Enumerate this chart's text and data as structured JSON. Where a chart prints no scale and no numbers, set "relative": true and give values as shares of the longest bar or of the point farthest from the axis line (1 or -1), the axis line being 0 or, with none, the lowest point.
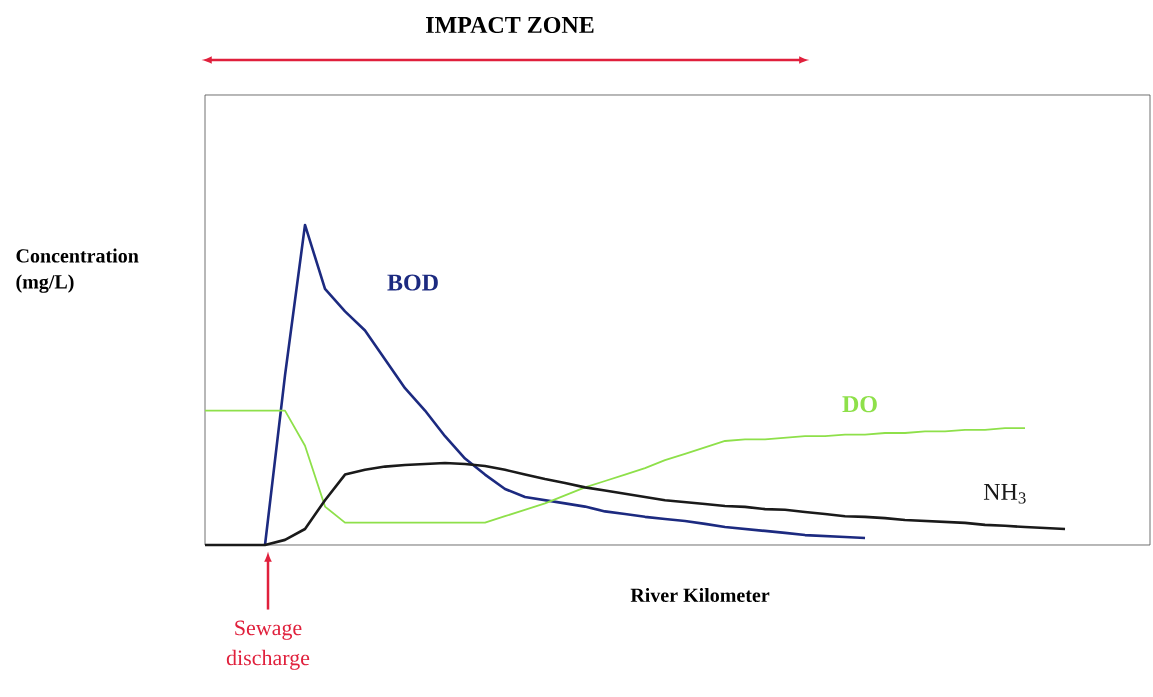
{
  "chart_data": {
    "type": "line",
    "relative": true,
    "xlabel": "River Kilometer",
    "ylabel": "Concentration (mg/L)",
    "annotations": [
      "IMPACT ZONE",
      "Sewage discharge"
    ],
    "categories": [
      null,
      null,
      null,
      null,
      null,
      null,
      null,
      null,
      null,
      null,
      null,
      null,
      null,
      null,
      null,
      null,
      null,
      null,
      null,
      null,
      null,
      null,
      null,
      null,
      null,
      null,
      null,
      null,
      null,
      null,
      null,
      null,
      null,
      null,
      null,
      null,
      null,
      null,
      null,
      null,
      null,
      null,
      null,
      null,
      null,
      null,
      null,
      null
    ],
    "series": [
      {
        "name": "BOD",
        "color": "#1c2a80",
        "values": [
          null,
          null,
          null,
          0,
          0.53,
          1,
          0.8,
          0.73,
          0.67,
          0.58,
          0.49,
          0.42,
          0.34,
          0.27,
          0.22,
          0.175,
          0.15,
          0.14,
          0.13,
          0.12,
          0.105,
          0.097,
          0.088,
          0.081,
          0.075,
          0.066,
          0.056,
          0.05,
          0.044,
          0.038,
          0.031,
          0.028,
          0.025,
          0.022,
          null,
          null,
          null,
          null,
          null,
          null,
          null,
          null,
          null,
          null,
          null,
          null,
          null,
          null
        ]
      },
      {
        "name": "DO",
        "color": "#8ee04a",
        "values": [
          0.42,
          0.42,
          0.42,
          0.42,
          0.42,
          0.31,
          0.12,
          0.07,
          0.07,
          0.07,
          0.07,
          0.07,
          0.07,
          0.07,
          0.07,
          0.09,
          0.11,
          0.13,
          0.155,
          0.18,
          0.2,
          0.22,
          0.24,
          0.265,
          0.285,
          0.305,
          0.325,
          0.33,
          0.33,
          0.335,
          0.34,
          0.34,
          0.345,
          0.345,
          0.35,
          0.35,
          0.355,
          0.355,
          0.36,
          0.36,
          0.365,
          0.365,
          null,
          null,
          null,
          null,
          null,
          null
        ]
      },
      {
        "name": "NH$_{3}$",
        "color": "#1a1a1a",
        "values": [
          0,
          0,
          0,
          0,
          0.016,
          0.05,
          0.14,
          0.22,
          0.235,
          0.245,
          0.25,
          0.253,
          0.256,
          0.253,
          0.247,
          0.235,
          0.22,
          0.206,
          0.194,
          0.18,
          0.17,
          0.16,
          0.15,
          0.14,
          0.134,
          0.128,
          0.122,
          0.119,
          0.112,
          0.11,
          0.103,
          0.097,
          0.09,
          0.088,
          0.084,
          0.078,
          0.075,
          0.072,
          0.069,
          0.063,
          0.06,
          0.056,
          0.053,
          0.05,
          null,
          null,
          null,
          null
        ]
      }
    ]
  }
}
